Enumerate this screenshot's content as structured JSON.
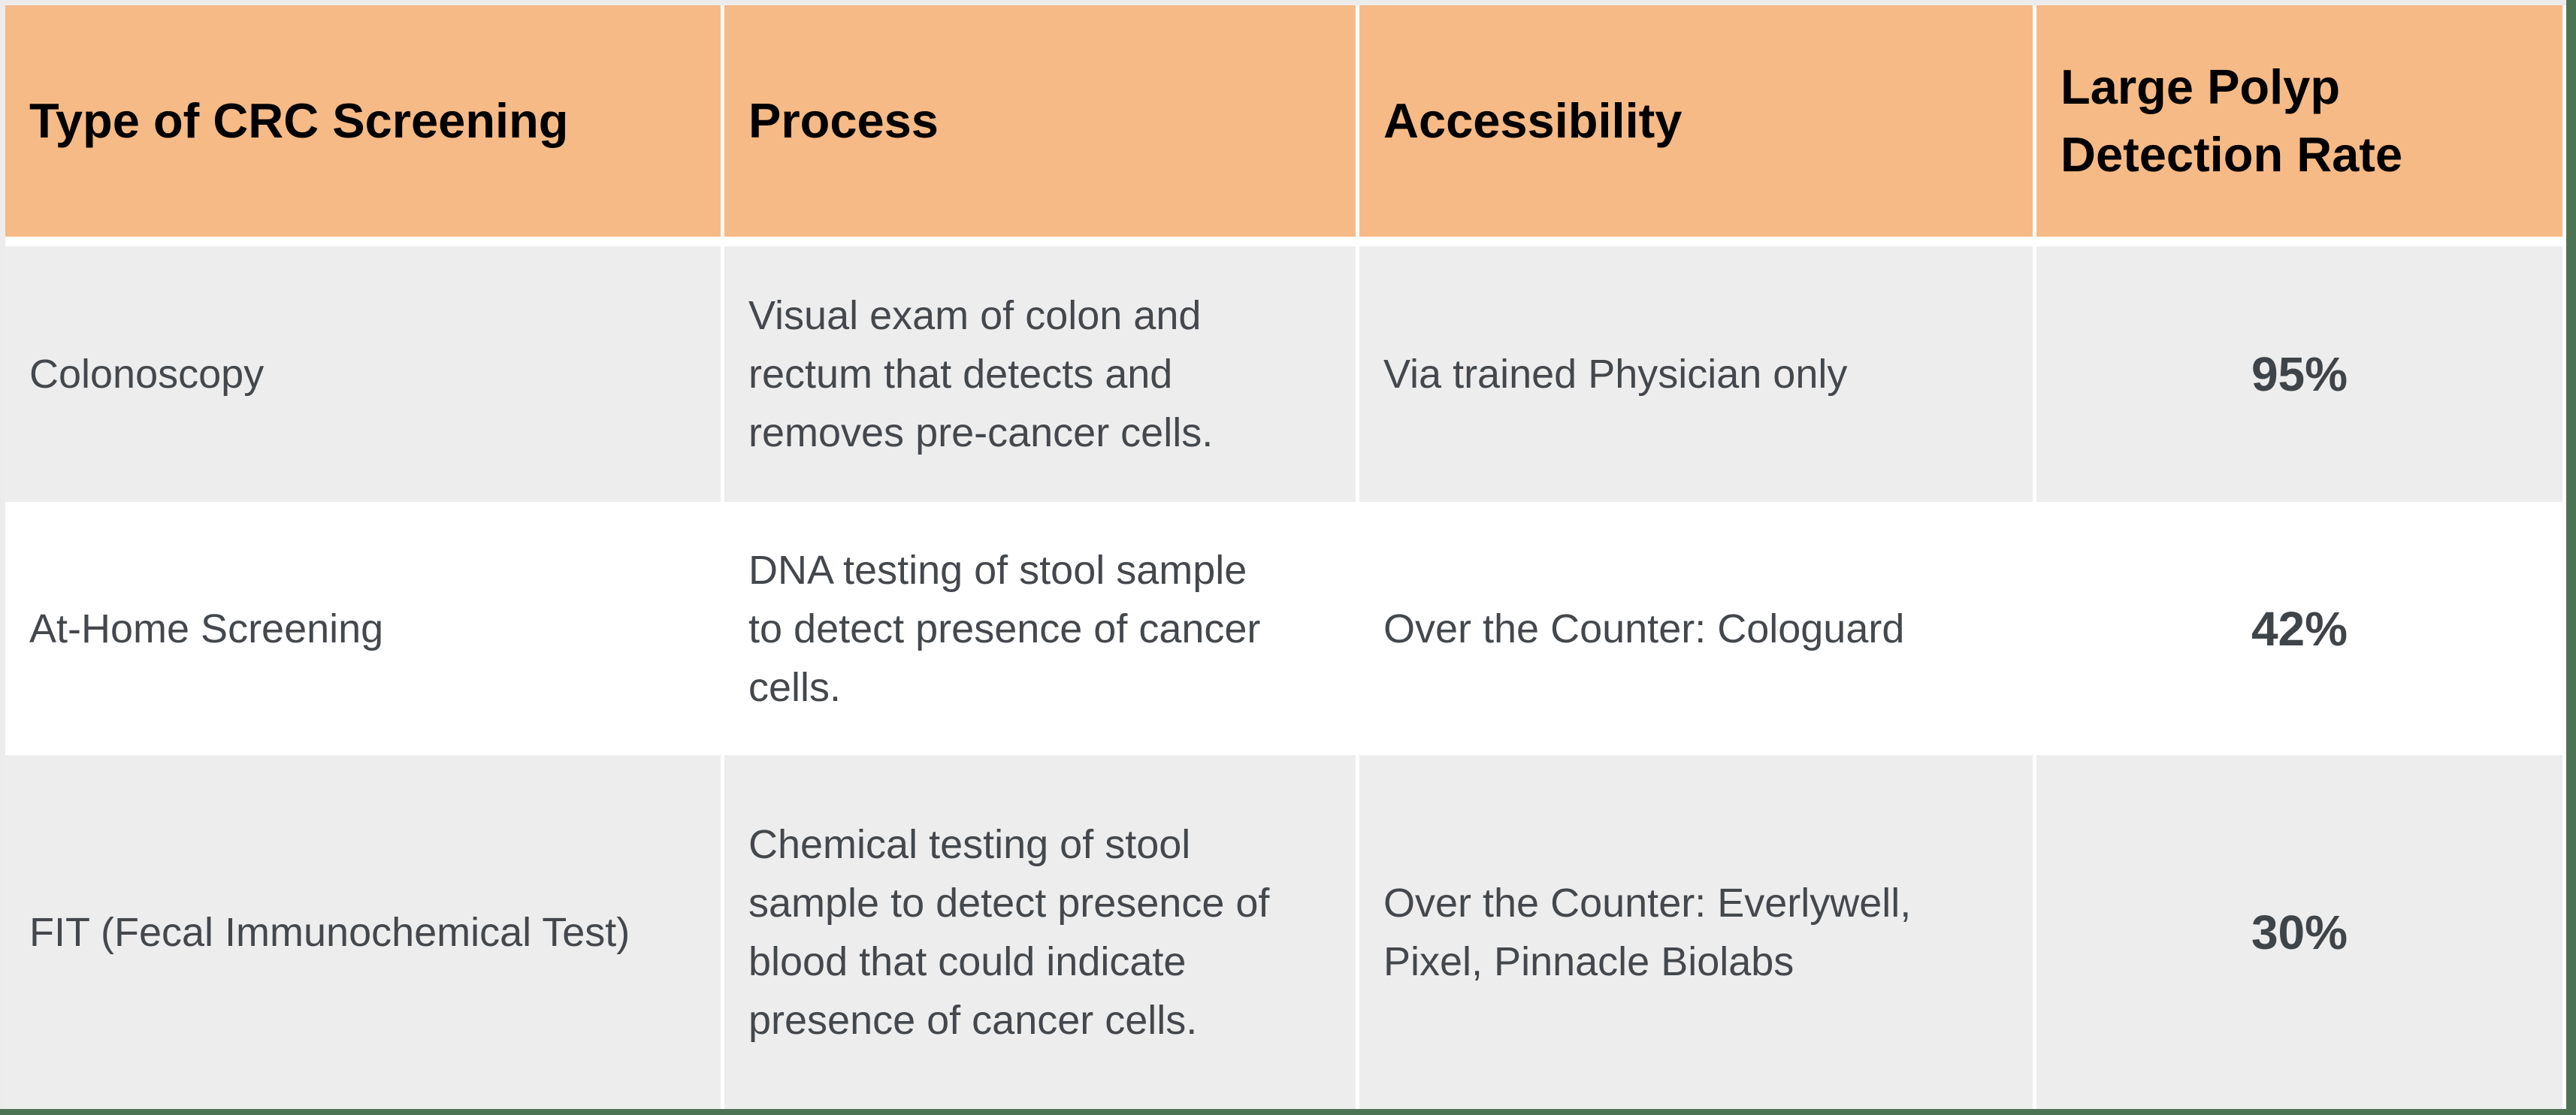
{
  "table": {
    "headers": [
      "Type of CRC Screening",
      "Process",
      "Accessibility",
      "Large Polyp\nDetection Rate"
    ],
    "rows": [
      {
        "type": "Colonoscopy",
        "process": "Visual exam of colon and\nrectum that detects and\nremoves pre-cancer cells.",
        "accessibility": "Via trained Physician only",
        "detection_rate": "95%"
      },
      {
        "type": "At-Home Screening",
        "process": "DNA testing of stool sample\nto detect presence of cancer\ncells.",
        "accessibility": "Over the Counter: Cologuard",
        "detection_rate": "42%"
      },
      {
        "type": "FIT (Fecal Immunochemical Test)",
        "process": "Chemical testing of stool\nsample to detect presence of\nblood that could indicate\npresence of cancer cells.",
        "accessibility": "Over the Counter: Everlywell,\nPixel, Pinnacle Biolabs",
        "detection_rate": "30%"
      }
    ]
  },
  "colors": {
    "header_bg": "#F6BA86",
    "banded_row_bg": "#EDEDED",
    "plain_row_bg": "#FFFFFF",
    "grid_line": "#FFFFFF",
    "edge_border_green": "#4D7355",
    "header_text": "#000000",
    "body_text": "#44484C",
    "rate_text": "#3F4448"
  }
}
